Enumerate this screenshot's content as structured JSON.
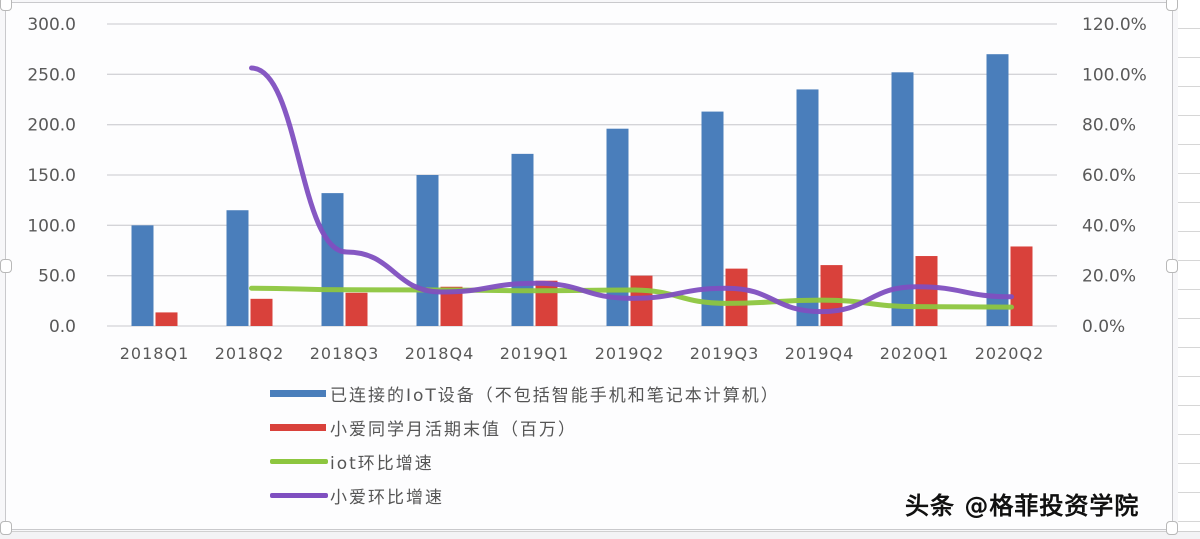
{
  "chart_data": {
    "type": "bar",
    "categories": [
      "2018Q1",
      "2018Q2",
      "2018Q3",
      "2018Q4",
      "2019Q1",
      "2019Q2",
      "2019Q3",
      "2019Q4",
      "2020Q1",
      "2020Q2"
    ],
    "series": [
      {
        "name": "已连接的IoT设备（不包括智能手机和笔记本计算机）",
        "type": "bar",
        "axis": "left",
        "color": "#4a7ebb",
        "values": [
          100.0,
          115.0,
          132.0,
          150.0,
          171.0,
          196.0,
          213.0,
          235.0,
          252.0,
          270.0
        ]
      },
      {
        "name": "小爱同学月活期末值（百万）",
        "type": "bar",
        "axis": "left",
        "color": "#d9413b",
        "values": [
          13.5,
          27.0,
          33.0,
          39.0,
          45.0,
          50.0,
          57.0,
          60.5,
          69.5,
          79.0
        ]
      },
      {
        "name": "iot环比增速",
        "type": "line",
        "axis": "right",
        "color": "#8dc63f",
        "values": [
          null,
          15.0,
          14.4,
          14.3,
          14.0,
          14.3,
          9.0,
          10.3,
          7.7,
          7.5
        ]
      },
      {
        "name": "小爱环比增速",
        "type": "line",
        "axis": "right",
        "color": "#7f4fc0",
        "values": [
          null,
          102.5,
          29.4,
          13.5,
          17.0,
          11.0,
          15.0,
          5.7,
          15.6,
          11.6
        ]
      }
    ],
    "title": "",
    "xlabel": "",
    "ylabel": "",
    "y_left": {
      "ticks": [
        "0.0",
        "50.0",
        "100.0",
        "150.0",
        "200.0",
        "250.0",
        "300.0"
      ],
      "range": [
        0,
        300
      ]
    },
    "y_right": {
      "ticks": [
        "0.0%",
        "20.0%",
        "40.0%",
        "60.0%",
        "80.0%",
        "100.0%",
        "120.0%"
      ],
      "range": [
        0,
        120
      ]
    },
    "grid": true,
    "legend_position": "bottom"
  },
  "legend": [
    {
      "label": "已连接的IoT设备（不包括智能手机和笔记本计算机）",
      "color": "#4a7ebb",
      "kind": "bar"
    },
    {
      "label": "小爱同学月活期末值（百万）",
      "color": "#d9413b",
      "kind": "bar"
    },
    {
      "label": "iot环比增速",
      "color": "#8dc63f",
      "kind": "line"
    },
    {
      "label": "小爱环比增速",
      "color": "#7f4fc0",
      "kind": "line"
    }
  ],
  "watermark": "头条 @格菲投资学院"
}
